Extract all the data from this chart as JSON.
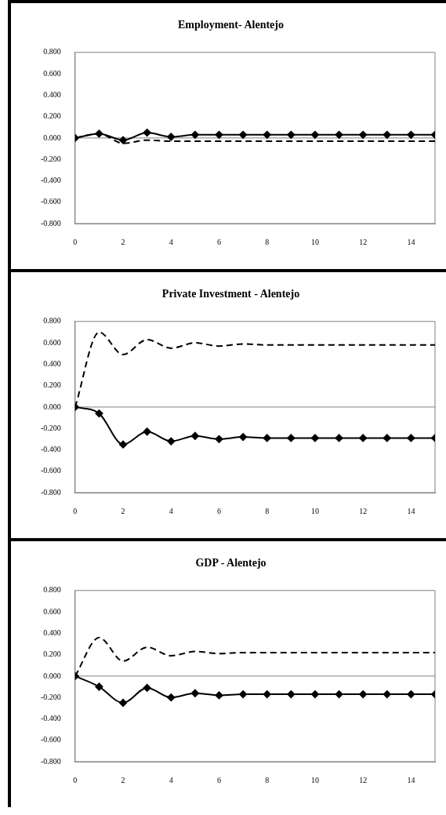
{
  "chart_data": [
    {
      "type": "line",
      "title": "Employment- Alentejo",
      "x": [
        0,
        1,
        2,
        3,
        4,
        5,
        6,
        7,
        8,
        9,
        10,
        11,
        12,
        13,
        14,
        15
      ],
      "xlim": [
        0,
        15
      ],
      "xticks": [
        0,
        2,
        4,
        6,
        8,
        10,
        12,
        14
      ],
      "ylim": [
        -0.8,
        0.8
      ],
      "yticks": [
        {
          "value": -0.8,
          "label": "-0.800"
        },
        {
          "value": -0.6,
          "label": "-0.600"
        },
        {
          "value": -0.4,
          "label": "-0.400"
        },
        {
          "value": -0.2,
          "label": "-0.200"
        },
        {
          "value": 0,
          "label": "0.000"
        },
        {
          "value": 0.2,
          "label": "0.200"
        },
        {
          "value": 0.4,
          "label": "0.400"
        },
        {
          "value": 0.6,
          "label": "0.600"
        },
        {
          "value": 0.8,
          "label": "0.800"
        }
      ],
      "grid": false,
      "legend": false,
      "ref_lines": [
        {
          "axis": "y",
          "value": 0,
          "color": "#808080"
        }
      ],
      "series": [
        {
          "color": "#000000",
          "marker": "diamond",
          "line_style": "solid",
          "values": [
            0,
            0.04,
            -0.02,
            0.05,
            0.01,
            0.03,
            0.03,
            0.03,
            0.03,
            0.03,
            0.03,
            0.03,
            0.03,
            0.03,
            0.03,
            0.03
          ]
        },
        {
          "color": "#000000",
          "marker": "none",
          "line_style": "dashed",
          "values": [
            0,
            0.04,
            -0.05,
            -0.02,
            -0.03,
            -0.03,
            -0.03,
            -0.03,
            -0.03,
            -0.03,
            -0.03,
            -0.03,
            -0.03,
            -0.03,
            -0.03,
            -0.03
          ]
        }
      ]
    },
    {
      "type": "line",
      "title": "Private Investment - Alentejo",
      "x": [
        0,
        1,
        2,
        3,
        4,
        5,
        6,
        7,
        8,
        9,
        10,
        11,
        12,
        13,
        14,
        15
      ],
      "xlim": [
        0,
        15
      ],
      "xticks": [
        0,
        2,
        4,
        6,
        8,
        10,
        12,
        14
      ],
      "ylim": [
        -0.8,
        0.8
      ],
      "yticks": [
        {
          "value": -0.8,
          "label": "-0.800"
        },
        {
          "value": -0.6,
          "label": "-0.600"
        },
        {
          "value": -0.4,
          "label": "-0.400"
        },
        {
          "value": -0.2,
          "label": "-0.200"
        },
        {
          "value": 0,
          "label": "0.000"
        },
        {
          "value": 0.2,
          "label": "0.200"
        },
        {
          "value": 0.4,
          "label": "0.400"
        },
        {
          "value": 0.6,
          "label": "0.600"
        },
        {
          "value": 0.8,
          "label": "0.800"
        }
      ],
      "grid": false,
      "legend": false,
      "ref_lines": [
        {
          "axis": "y",
          "value": 0,
          "color": "#808080"
        }
      ],
      "series": [
        {
          "color": "#000000",
          "marker": "diamond",
          "line_style": "solid",
          "values": [
            0,
            -0.06,
            -0.35,
            -0.23,
            -0.32,
            -0.27,
            -0.3,
            -0.28,
            -0.29,
            -0.29,
            -0.29,
            -0.29,
            -0.29,
            -0.29,
            -0.29,
            -0.29
          ]
        },
        {
          "color": "#000000",
          "marker": "none",
          "line_style": "dashed",
          "values": [
            0,
            0.7,
            0.49,
            0.63,
            0.55,
            0.6,
            0.57,
            0.59,
            0.58,
            0.58,
            0.58,
            0.58,
            0.58,
            0.58,
            0.58,
            0.58
          ]
        }
      ]
    },
    {
      "type": "line",
      "title": "GDP - Alentejo",
      "x": [
        0,
        1,
        2,
        3,
        4,
        5,
        6,
        7,
        8,
        9,
        10,
        11,
        12,
        13,
        14,
        15
      ],
      "xlim": [
        0,
        15
      ],
      "xticks": [
        0,
        2,
        4,
        6,
        8,
        10,
        12,
        14
      ],
      "ylim": [
        -0.8,
        0.8
      ],
      "yticks": [
        {
          "value": -0.8,
          "label": "-0.800"
        },
        {
          "value": -0.6,
          "label": "-0.600"
        },
        {
          "value": -0.4,
          "label": "-0.400"
        },
        {
          "value": -0.2,
          "label": "-0.200"
        },
        {
          "value": 0,
          "label": "0.000"
        },
        {
          "value": 0.2,
          "label": "0.200"
        },
        {
          "value": 0.4,
          "label": "0.400"
        },
        {
          "value": 0.6,
          "label": "0.600"
        },
        {
          "value": 0.8,
          "label": "0.800"
        }
      ],
      "grid": false,
      "legend": false,
      "ref_lines": [
        {
          "axis": "y",
          "value": 0,
          "color": "#808080"
        }
      ],
      "series": [
        {
          "color": "#000000",
          "marker": "diamond",
          "line_style": "solid",
          "values": [
            0,
            -0.1,
            -0.25,
            -0.11,
            -0.2,
            -0.16,
            -0.18,
            -0.17,
            -0.17,
            -0.17,
            -0.17,
            -0.17,
            -0.17,
            -0.17,
            -0.17,
            -0.17
          ]
        },
        {
          "color": "#000000",
          "marker": "none",
          "line_style": "dashed",
          "values": [
            0,
            0.36,
            0.14,
            0.27,
            0.19,
            0.23,
            0.21,
            0.22,
            0.22,
            0.22,
            0.22,
            0.22,
            0.22,
            0.22,
            0.22,
            0.22
          ]
        }
      ]
    }
  ]
}
